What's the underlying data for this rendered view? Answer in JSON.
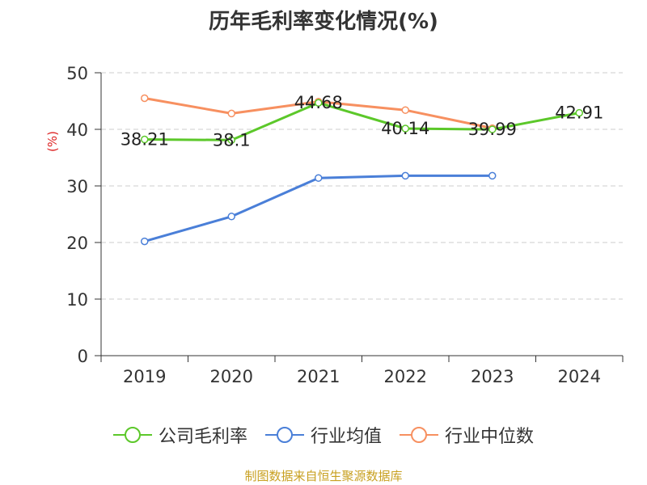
{
  "chart_data": {
    "type": "line",
    "title": "历年毛利率变化情况(%)",
    "ylabel": "(%)",
    "xlabel": "",
    "categories": [
      "2019",
      "2020",
      "2021",
      "2022",
      "2023",
      "2024"
    ],
    "ylim": [
      0,
      50
    ],
    "yticks": [
      0,
      10,
      20,
      30,
      40,
      50
    ],
    "grid": true,
    "legend_position": "bottom",
    "series": [
      {
        "name": "公司毛利率",
        "color": "#5cc82a",
        "values": [
          38.21,
          38.1,
          44.68,
          40.14,
          39.99,
          42.91
        ],
        "labels": [
          "38.21",
          "38.1",
          "44.68",
          "40.14",
          "39.99",
          "42.91"
        ]
      },
      {
        "name": "行业均值",
        "color": "#4a7fd8",
        "values": [
          20.2,
          24.6,
          31.4,
          31.8,
          31.8,
          null
        ]
      },
      {
        "name": "行业中位数",
        "color": "#f79060",
        "values": [
          45.5,
          42.8,
          44.9,
          43.4,
          40.2,
          null
        ]
      }
    ]
  },
  "source": "制图数据来自恒生聚源数据库"
}
